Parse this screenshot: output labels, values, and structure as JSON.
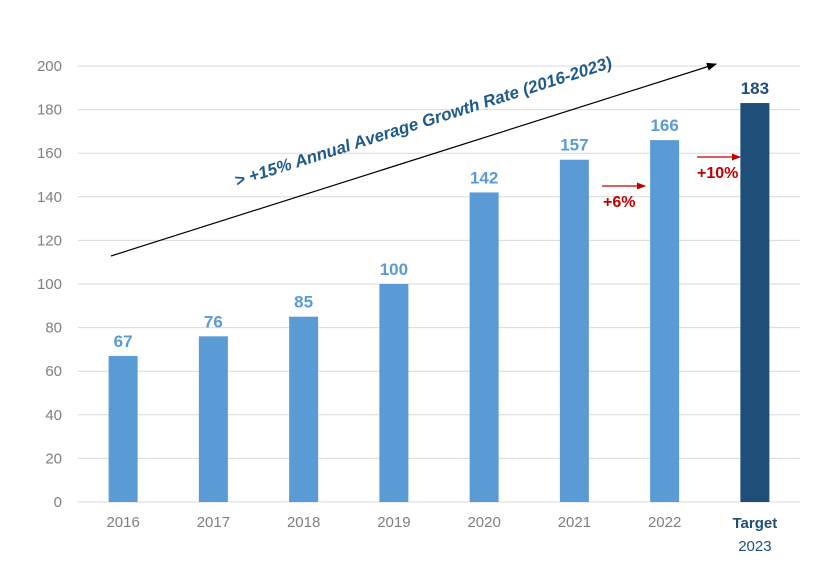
{
  "chart_data": {
    "type": "bar",
    "categories": [
      "2016",
      "2017",
      "2018",
      "2019",
      "2020",
      "2021",
      "2022",
      "2023"
    ],
    "category_prefix": [
      "",
      "",
      "",
      "",
      "",
      "",
      "",
      "Target"
    ],
    "values": [
      67,
      76,
      85,
      100,
      142,
      157,
      166,
      183
    ],
    "data_labels": [
      "67",
      "76",
      "85",
      "100",
      "142",
      "157",
      "166",
      "183"
    ],
    "highlight_index": 7,
    "ylim": [
      0,
      200
    ],
    "yticks": [
      0,
      20,
      40,
      60,
      80,
      100,
      120,
      140,
      160,
      180,
      200
    ],
    "grid": true,
    "colors": {
      "bar": "#5b9bd5",
      "bar_highlight": "#1f4e79",
      "label": "#5b9bd5",
      "label_highlight": "#1f4e79",
      "growth": "#c00000",
      "trend_text": "#1f5a8a",
      "grid": "#d9d9d9"
    },
    "annotations": {
      "trend": "> +15% Annual Average Growth Rate (2016-2023)",
      "growth": [
        {
          "between": [
            5,
            6
          ],
          "text": "+6%"
        },
        {
          "between": [
            6,
            7
          ],
          "text": "+10%"
        }
      ]
    }
  }
}
